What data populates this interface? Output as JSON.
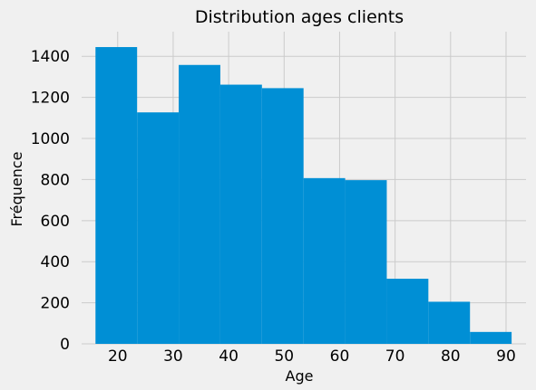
{
  "chart_data": {
    "type": "bar",
    "title": "Distribution ages clients",
    "xlabel": "Age",
    "ylabel": "Fréquence",
    "xlim": [
      13.5,
      93.6
    ],
    "ylim": [
      0,
      1520
    ],
    "xticks": [
      20,
      30,
      40,
      50,
      60,
      70,
      80,
      90
    ],
    "yticks": [
      0,
      200,
      400,
      600,
      800,
      1000,
      1200,
      1400
    ],
    "grid": true,
    "bar_color": "#008fd5",
    "background_color": "#f0f0f0",
    "bins": [
      {
        "x0": 16.0,
        "x1": 23.5,
        "value": 1445
      },
      {
        "x0": 23.5,
        "x1": 31.0,
        "value": 1127
      },
      {
        "x0": 31.0,
        "x1": 38.5,
        "value": 1358
      },
      {
        "x0": 38.5,
        "x1": 46.0,
        "value": 1262
      },
      {
        "x0": 46.0,
        "x1": 53.5,
        "value": 1245
      },
      {
        "x0": 53.5,
        "x1": 61.0,
        "value": 807
      },
      {
        "x0": 61.0,
        "x1": 68.5,
        "value": 797
      },
      {
        "x0": 68.5,
        "x1": 76.0,
        "value": 317
      },
      {
        "x0": 76.0,
        "x1": 83.5,
        "value": 205
      },
      {
        "x0": 83.5,
        "x1": 91.0,
        "value": 58
      }
    ]
  }
}
